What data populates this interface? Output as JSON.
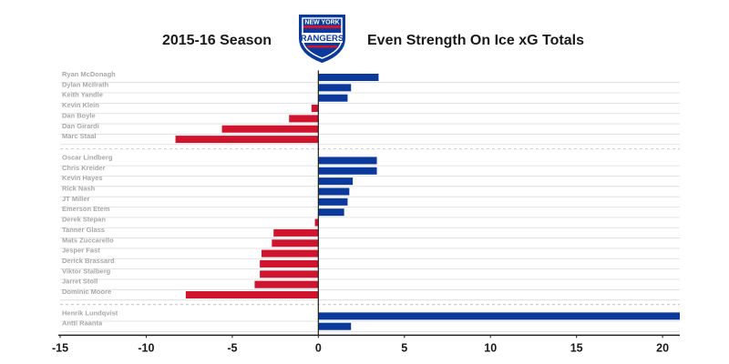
{
  "header": {
    "left_title": "2015-16 Season",
    "right_title": "Even Strength On Ice xG Totals",
    "logo": {
      "top_text": "NEW YORK",
      "main_text": "RANGERS"
    }
  },
  "colors": {
    "positive": "#0b3a9c",
    "negative": "#d0142e",
    "logo_blue": "#0b3a9c",
    "logo_red": "#d0142e",
    "row_line": "#dcdcdc",
    "axis": "#222222",
    "label": "#a8a8a8"
  },
  "chart_data": {
    "type": "bar",
    "orientation": "horizontal",
    "xlim": [
      -15,
      21
    ],
    "ticks": [
      -15,
      -10,
      -5,
      0,
      5,
      10,
      15,
      20
    ],
    "groups": [
      {
        "players": [
          {
            "name": "Ryan McDonagh",
            "value": 3.5
          },
          {
            "name": "Dylan McIlrath",
            "value": 1.9
          },
          {
            "name": "Keith Yandle",
            "value": 1.7
          },
          {
            "name": "Kevin Klein",
            "value": -0.4
          },
          {
            "name": "Dan Boyle",
            "value": -1.7
          },
          {
            "name": "Dan Girardi",
            "value": -5.6
          },
          {
            "name": "Marc Staal",
            "value": -8.3
          }
        ]
      },
      {
        "players": [
          {
            "name": "Oscar Lindberg",
            "value": 3.4
          },
          {
            "name": "Chris Kreider",
            "value": 3.4
          },
          {
            "name": "Kevin Hayes",
            "value": 2.0
          },
          {
            "name": "Rick Nash",
            "value": 1.8
          },
          {
            "name": "JT Miller",
            "value": 1.7
          },
          {
            "name": "Emerson Etem",
            "value": 1.5
          },
          {
            "name": "Derek Stepan",
            "value": -0.2
          },
          {
            "name": "Tanner Glass",
            "value": -2.6
          },
          {
            "name": "Mats Zuccarello",
            "value": -2.7
          },
          {
            "name": "Jesper Fast",
            "value": -3.3
          },
          {
            "name": "Derick Brassard",
            "value": -3.4
          },
          {
            "name": "Viktor Stalberg",
            "value": -3.4
          },
          {
            "name": "Jarret Stoll",
            "value": -3.7
          },
          {
            "name": "Dominic Moore",
            "value": -7.7
          }
        ]
      },
      {
        "players": [
          {
            "name": "Henrik Lundqvist",
            "value": 21.0
          },
          {
            "name": "Antti Raanta",
            "value": 1.9
          }
        ]
      }
    ]
  }
}
